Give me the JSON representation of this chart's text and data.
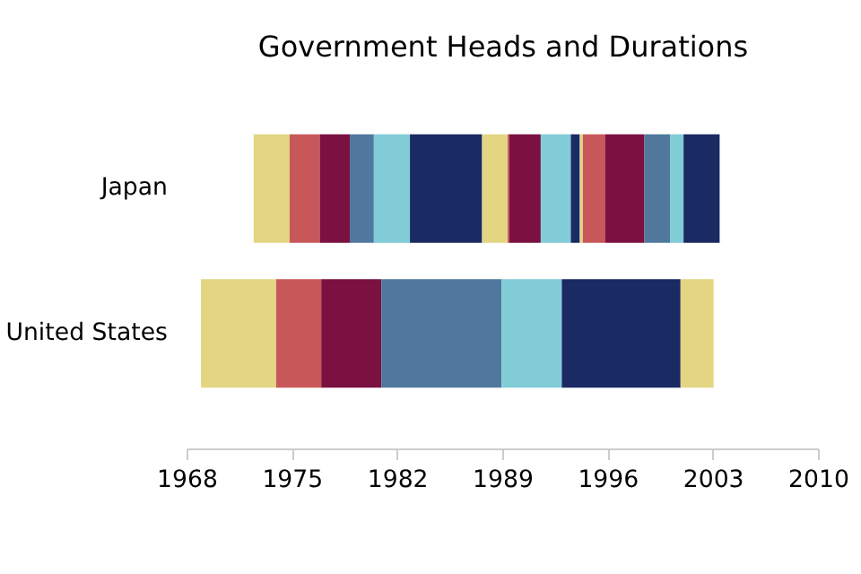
{
  "chart_data": {
    "type": "bar",
    "title": "Government Heads and Durations",
    "orientation": "horizontal",
    "categories": [
      "Japan",
      "United States"
    ],
    "series": [
      {
        "color": "#e3d582",
        "base": [
          1972.4,
          1968.9
        ],
        "values": [
          2.4,
          5.0
        ]
      },
      {
        "color": "#c8575a",
        "base": [
          1974.8,
          1973.9
        ],
        "values": [
          2.0,
          3.0
        ]
      },
      {
        "color": "#7b1140",
        "base": [
          1976.8,
          1976.9
        ],
        "values": [
          2.0,
          4.0
        ]
      },
      {
        "color": "#50789c",
        "base": [
          1978.8,
          1980.9
        ],
        "values": [
          1.6,
          8.0
        ]
      },
      {
        "color": "#82ccd8",
        "base": [
          1980.4,
          1988.9
        ],
        "values": [
          2.4,
          4.0
        ]
      },
      {
        "color": "#1a2a63",
        "base": [
          1982.8,
          1992.9
        ],
        "values": [
          4.8,
          7.9
        ]
      },
      {
        "color": "#e3d582",
        "base": [
          1987.6,
          2000.8
        ],
        "values": [
          1.7,
          2.2
        ]
      },
      {
        "color": "#c8575a",
        "base": [
          1989.3,
          null
        ],
        "values": [
          0.1,
          null
        ]
      },
      {
        "color": "#7b1140",
        "base": [
          1989.4,
          null
        ],
        "values": [
          2.1,
          null
        ]
      },
      {
        "color": "#82ccd8",
        "base": [
          1991.5,
          null
        ],
        "values": [
          2.0,
          null
        ]
      },
      {
        "color": "#1a2a63",
        "base": [
          1993.5,
          null
        ],
        "values": [
          0.6,
          null
        ]
      },
      {
        "color": "#e3d582",
        "base": [
          1994.1,
          null
        ],
        "values": [
          0.2,
          null
        ]
      },
      {
        "color": "#c8575a",
        "base": [
          1994.3,
          null
        ],
        "values": [
          1.5,
          null
        ]
      },
      {
        "color": "#7b1140",
        "base": [
          1995.8,
          null
        ],
        "values": [
          2.6,
          null
        ]
      },
      {
        "color": "#50789c",
        "base": [
          1998.4,
          null
        ],
        "values": [
          1.7,
          null
        ]
      },
      {
        "color": "#82ccd8",
        "base": [
          2000.1,
          null
        ],
        "values": [
          0.9,
          null
        ]
      },
      {
        "color": "#1a2a63",
        "base": [
          2001.0,
          null
        ],
        "values": [
          2.4,
          null
        ]
      }
    ],
    "xlim": [
      1968,
      2010
    ],
    "xticks": [
      1968,
      1975,
      1982,
      1989,
      1996,
      2003,
      2010
    ],
    "grid": false
  }
}
